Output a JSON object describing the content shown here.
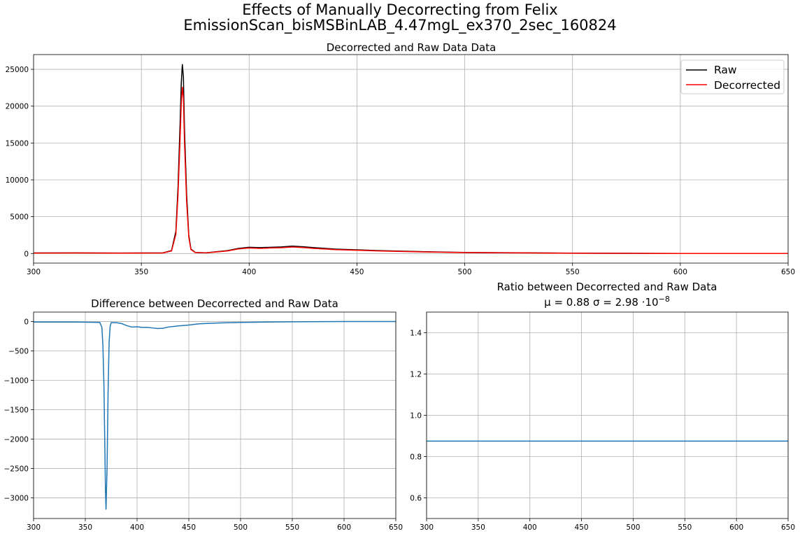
{
  "figure": {
    "suptitle_line1": "Effects of Manually Decorrecting from Felix",
    "suptitle_line2": "EmissionScan_bisMSBinLAB_4.47mgL_ex370_2sec_160824"
  },
  "colors": {
    "raw": "#000000",
    "decorrected": "#ff0000",
    "blue": "#1f77b4",
    "grid": "#b0b0b0"
  },
  "chart_data": [
    {
      "type": "line",
      "title": "Decorrected and Raw Data Data",
      "xlim": [
        300,
        650
      ],
      "ylim": [
        -1300,
        27000
      ],
      "xticks": [
        300,
        350,
        400,
        450,
        500,
        550,
        600,
        650
      ],
      "yticks": [
        0,
        5000,
        10000,
        15000,
        20000,
        25000
      ],
      "grid": true,
      "legend_position": "top-right",
      "series": [
        {
          "name": "Raw",
          "color": "#000000",
          "x": [
            300,
            320,
            340,
            360,
            364,
            366,
            367,
            368,
            368.5,
            369,
            369.5,
            370,
            371,
            372,
            373,
            375,
            380,
            390,
            395,
            400,
            405,
            410,
            415,
            420,
            425,
            430,
            440,
            450,
            460,
            480,
            500,
            550,
            600,
            650
          ],
          "y": [
            80,
            90,
            60,
            90,
            400,
            3000,
            9000,
            18000,
            23000,
            25700,
            24000,
            17000,
            8000,
            2500,
            600,
            150,
            100,
            400,
            700,
            850,
            800,
            850,
            900,
            1000,
            920,
            800,
            600,
            500,
            400,
            250,
            150,
            50,
            0,
            0
          ]
        },
        {
          "name": "Decorrected",
          "color": "#ff0000",
          "x": [
            300,
            320,
            340,
            360,
            364,
            366,
            367,
            368,
            368.5,
            369,
            369.5,
            370,
            371,
            372,
            373,
            375,
            380,
            390,
            395,
            400,
            405,
            410,
            415,
            420,
            425,
            430,
            440,
            450,
            460,
            480,
            500,
            550,
            600,
            650
          ],
          "y": [
            70,
            80,
            50,
            80,
            350,
            2600,
            7900,
            15800,
            20200,
            22600,
            21100,
            15000,
            7000,
            2200,
            530,
            130,
            90,
            350,
            620,
            750,
            700,
            750,
            790,
            880,
            810,
            700,
            530,
            440,
            350,
            220,
            130,
            45,
            0,
            0
          ]
        }
      ]
    },
    {
      "type": "line",
      "title": "Difference between Decorrected and Raw Data",
      "xlim": [
        300,
        650
      ],
      "ylim": [
        -3350,
        160
      ],
      "xticks": [
        300,
        350,
        400,
        450,
        500,
        550,
        600,
        650
      ],
      "yticks": [
        0,
        -500,
        -1000,
        -1500,
        -2000,
        -2500,
        -3000
      ],
      "grid": true,
      "series": [
        {
          "color": "#1f77b4",
          "x": [
            300,
            340,
            364,
            366,
            367,
            368,
            369,
            369.5,
            370,
            371,
            372,
            373,
            374,
            375,
            380,
            385,
            390,
            395,
            400,
            405,
            410,
            415,
            420,
            425,
            430,
            440,
            450,
            460,
            480,
            500,
            550,
            600,
            650
          ],
          "y": [
            -10,
            -10,
            -15,
            -100,
            -400,
            -1100,
            -2300,
            -2900,
            -3200,
            -2500,
            -1200,
            -350,
            -80,
            -20,
            -20,
            -35,
            -70,
            -95,
            -90,
            -100,
            -100,
            -110,
            -120,
            -115,
            -95,
            -75,
            -60,
            -40,
            -25,
            -15,
            -5,
            0,
            0
          ]
        }
      ]
    },
    {
      "type": "line",
      "title": "Ratio between Decorrected and Raw Data",
      "subtitle": "μ =  0.88    σ =  2.98 ·10",
      "subtitle_exponent": "−8",
      "xlim": [
        300,
        650
      ],
      "ylim": [
        0.5,
        1.5
      ],
      "xticks": [
        300,
        350,
        400,
        450,
        500,
        550,
        600,
        650
      ],
      "yticks": [
        0.6,
        0.8,
        1.0,
        1.2,
        1.4
      ],
      "grid": true,
      "series": [
        {
          "color": "#1f77b4",
          "x": [
            300,
            650
          ],
          "y": [
            0.875,
            0.875
          ]
        }
      ]
    }
  ]
}
